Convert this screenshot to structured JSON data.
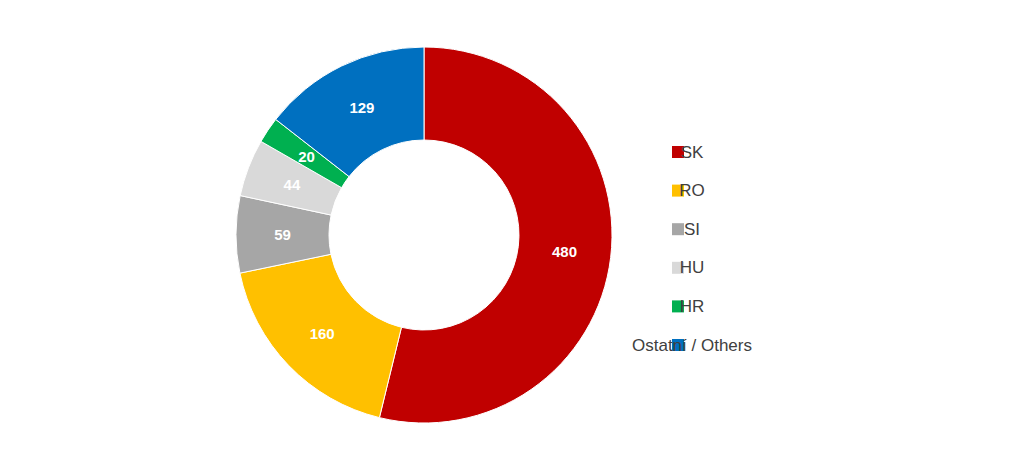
{
  "chart_data": {
    "type": "pie",
    "categories": [
      "SK",
      "RO",
      "SI",
      "HU",
      "HR",
      "Ostatní / Others"
    ],
    "values": [
      480,
      160,
      59,
      44,
      20,
      129
    ],
    "colors": [
      "#c00000",
      "#ffc000",
      "#a6a6a6",
      "#d9d9d9",
      "#00b050",
      "#0070c0"
    ],
    "data_labels": true,
    "legend": "right"
  }
}
